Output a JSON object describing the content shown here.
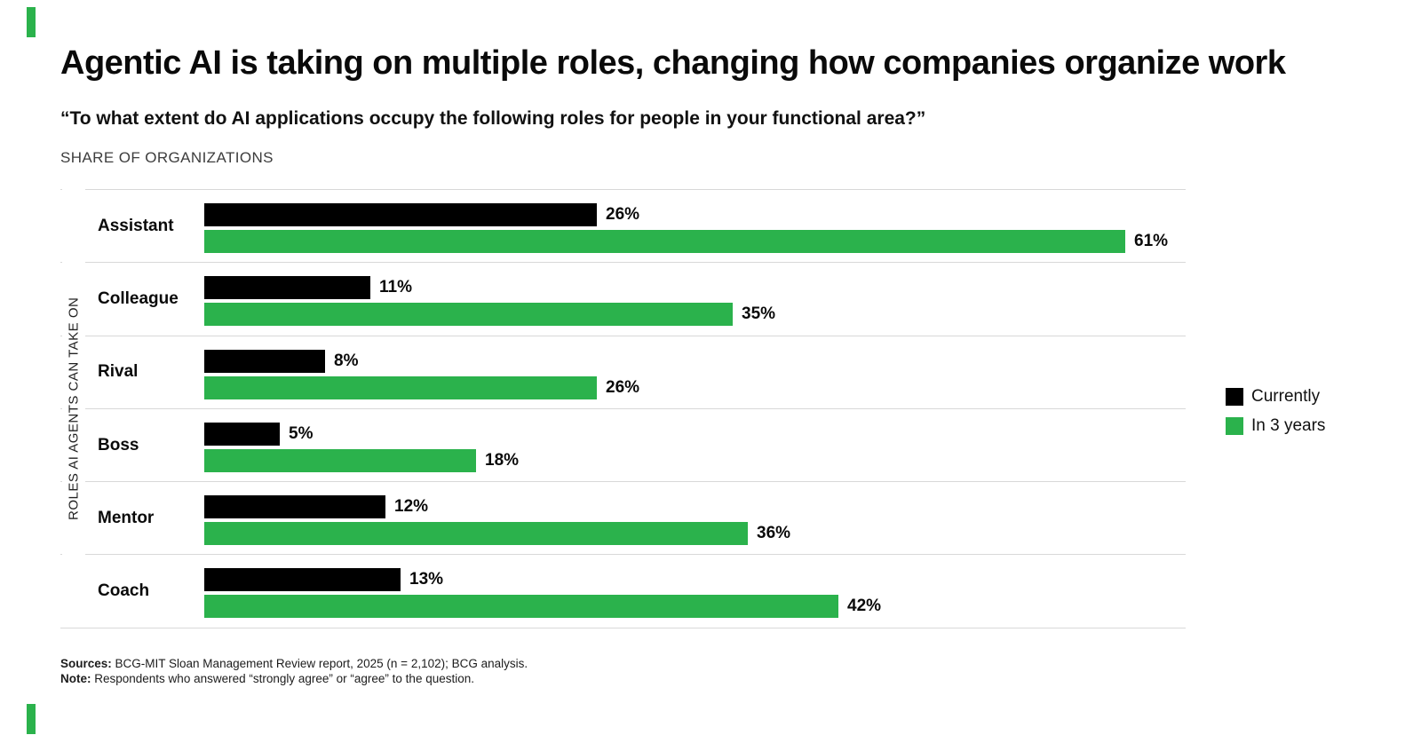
{
  "page": {
    "title": "Agentic AI is taking on multiple roles, changing how companies organize work",
    "subtitle": "“To what extent do AI applications occupy the following roles for people in your functional area?”",
    "axis_caption": "SHARE OF ORGANIZATIONS"
  },
  "chart_data": {
    "type": "bar",
    "orientation": "horizontal",
    "title": "Agentic AI is taking on multiple roles, changing how companies organize work",
    "subtitle": "“To what extent do AI applications occupy the following roles for people in your functional area?”",
    "caption": "SHARE OF ORGANIZATIONS",
    "ylabel": "ROLES AI AGENTS CAN TAKE ON",
    "xlabel": "",
    "categories": [
      "Assistant",
      "Colleague",
      "Rival",
      "Boss",
      "Mentor",
      "Coach"
    ],
    "series": [
      {
        "name": "Currently",
        "color": "#000000",
        "values": [
          26,
          11,
          8,
          5,
          12,
          13
        ]
      },
      {
        "name": "In 3 years",
        "color": "#2BB24C",
        "values": [
          61,
          35,
          26,
          18,
          36,
          42
        ]
      }
    ],
    "value_suffix": "%",
    "xlim": [
      0,
      65
    ],
    "grid": "row-separators",
    "legend_position": "right"
  },
  "footer": {
    "sources_label": "Sources:",
    "sources_text": " BCG-MIT Sloan Management Review report, 2025 (n = 2,102); BCG analysis.",
    "note_label": "Note:",
    "note_text": " Respondents who answered “strongly agree” or “agree” to the question."
  },
  "colors": {
    "accent_green": "#2BB24C",
    "bar_black": "#000000",
    "separator": "#d8d8d8"
  }
}
